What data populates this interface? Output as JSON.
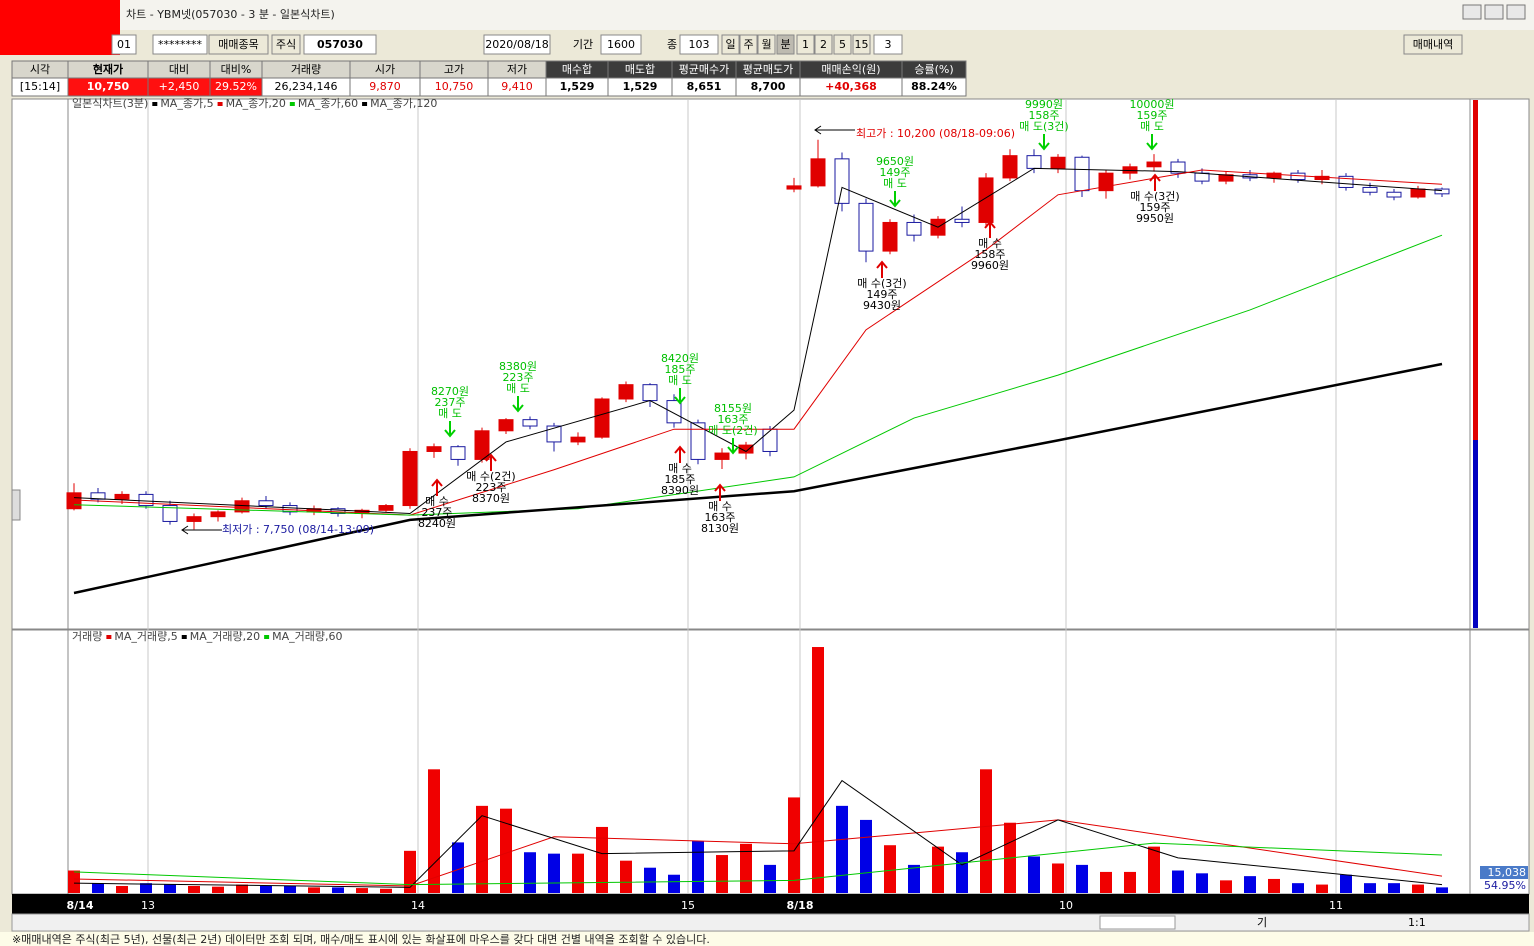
{
  "window": {
    "title": "차트 - YBM넷(057030 - 3 분 - 일본식차트)"
  },
  "toolbar": {
    "account": "01",
    "password": "********",
    "button": "매매종목",
    "market": "주식",
    "code": "057030",
    "date": "2020/08/18",
    "period_label": "기간",
    "period": "1600",
    "count_label": "종",
    "count": "103",
    "periods": [
      "일",
      "주",
      "월",
      "분",
      "1",
      "2",
      "5",
      "15"
    ],
    "minutes": "3",
    "history_button": "매매내역"
  },
  "summary": {
    "headers": [
      "시각",
      "현재가",
      "대비",
      "대비%",
      "거래량",
      "시가",
      "고가",
      "저가",
      "매수합",
      "매도합",
      "평균매수가",
      "평균매도가",
      "매매손익(원)",
      "승률(%)"
    ],
    "values": [
      "[15:14]",
      "10,750",
      "+2,450",
      "29.52%",
      "26,234,146",
      "9,870",
      "10,750",
      "9,410",
      "1,529",
      "1,529",
      "8,651",
      "8,700",
      "+40,368",
      "88.24%"
    ]
  },
  "chart_data": [
    {
      "type": "candlestick",
      "name": "일본식차트(3분)",
      "ylim": [
        7130,
        10450
      ],
      "up_color": "#e00000",
      "down_color": "#1a1aa0",
      "candles": [
        [
          7880,
          8040,
          7870,
          7980
        ],
        [
          7980,
          8010,
          7920,
          7940
        ],
        [
          7940,
          7990,
          7910,
          7970
        ],
        [
          7970,
          7990,
          7880,
          7900
        ],
        [
          7900,
          7930,
          7780,
          7800
        ],
        [
          7800,
          7850,
          7750,
          7830
        ],
        [
          7830,
          7870,
          7800,
          7860
        ],
        [
          7860,
          7950,
          7850,
          7930
        ],
        [
          7930,
          7960,
          7880,
          7900
        ],
        [
          7900,
          7920,
          7840,
          7860
        ],
        [
          7860,
          7900,
          7840,
          7880
        ],
        [
          7880,
          7890,
          7830,
          7850
        ],
        [
          7850,
          7880,
          7820,
          7870
        ],
        [
          7870,
          7910,
          7860,
          7900
        ],
        [
          7900,
          8260,
          7880,
          8240
        ],
        [
          8240,
          8290,
          8200,
          8270
        ],
        [
          8270,
          8280,
          8150,
          8190
        ],
        [
          8190,
          8390,
          8170,
          8370
        ],
        [
          8370,
          8450,
          8350,
          8440
        ],
        [
          8440,
          8460,
          8380,
          8400
        ],
        [
          8400,
          8420,
          8240,
          8300
        ],
        [
          8300,
          8360,
          8280,
          8330
        ],
        [
          8330,
          8580,
          8320,
          8570
        ],
        [
          8570,
          8680,
          8550,
          8660
        ],
        [
          8660,
          8670,
          8520,
          8560
        ],
        [
          8560,
          8600,
          8390,
          8420
        ],
        [
          8420,
          8440,
          8160,
          8190
        ],
        [
          8190,
          8260,
          8130,
          8230
        ],
        [
          8230,
          8300,
          8190,
          8280
        ],
        [
          8380,
          8400,
          8210,
          8240
        ],
        [
          9890,
          9960,
          9870,
          9910
        ],
        [
          9910,
          10200,
          9900,
          10080
        ],
        [
          10080,
          10120,
          9750,
          9800
        ],
        [
          9800,
          9830,
          9430,
          9500
        ],
        [
          9500,
          9700,
          9480,
          9680
        ],
        [
          9680,
          9730,
          9560,
          9600
        ],
        [
          9600,
          9720,
          9580,
          9700
        ],
        [
          9700,
          9780,
          9650,
          9680
        ],
        [
          9680,
          9990,
          9660,
          9960
        ],
        [
          9960,
          10140,
          9940,
          10100
        ],
        [
          10100,
          10140,
          9990,
          10020
        ],
        [
          10020,
          10110,
          9990,
          10090
        ],
        [
          10090,
          10100,
          9840,
          9880
        ],
        [
          9880,
          10010,
          9830,
          9990
        ],
        [
          9990,
          10050,
          9950,
          10030
        ],
        [
          10030,
          10110,
          10000,
          10060
        ],
        [
          10060,
          10080,
          9960,
          9990
        ],
        [
          9990,
          10020,
          9920,
          9940
        ],
        [
          9940,
          10000,
          9920,
          9980
        ],
        [
          9980,
          10010,
          9940,
          9960
        ],
        [
          9960,
          10000,
          9930,
          9990
        ],
        [
          9990,
          10010,
          9930,
          9950
        ],
        [
          9950,
          10010,
          9920,
          9970
        ],
        [
          9970,
          9990,
          9880,
          9900
        ],
        [
          9900,
          9930,
          9850,
          9870
        ],
        [
          9870,
          9890,
          9820,
          9840
        ],
        [
          9840,
          9910,
          9830,
          9890
        ],
        [
          9890,
          9900,
          9840,
          9860
        ]
      ],
      "ma_series": [
        {
          "name": "MA_종가,5",
          "color": "#000000",
          "x": [
            0,
            14,
            18,
            24,
            28,
            30,
            32,
            36,
            40,
            46,
            57
          ],
          "values": [
            7950,
            7850,
            8300,
            8560,
            8240,
            8500,
            9900,
            9650,
            10020,
            10000,
            9880
          ]
        },
        {
          "name": "MA_종가,20",
          "color": "#e00000",
          "x": [
            0,
            14,
            20,
            25,
            30,
            33,
            38,
            41,
            47,
            57
          ],
          "values": [
            7935,
            7840,
            8125,
            8380,
            8380,
            9005,
            9508,
            9854,
            10010,
            9920
          ]
        },
        {
          "name": "MA_종가,60",
          "color": "#00c800",
          "x": [
            0,
            14,
            21,
            30,
            35,
            41,
            49,
            57
          ],
          "values": [
            7905,
            7840,
            7880,
            8080,
            8450,
            8720,
            9130,
            9600
          ]
        },
        {
          "name": "MA_종가,120",
          "color": "#000000",
          "x": [
            0,
            14,
            30,
            41,
            57
          ],
          "values": [
            7350,
            7810,
            7990,
            8310,
            8790
          ]
        }
      ],
      "sell_marks": [
        [
          "8270원",
          "237주",
          "매 도"
        ],
        [
          "8380원",
          "223주",
          "매 도"
        ],
        [
          "8420원",
          "185주",
          "매 도"
        ],
        [
          "8155원",
          "163주",
          "매 도(2건)"
        ],
        [
          "9650원",
          "149주",
          "매 도"
        ],
        [
          "9990원",
          "158주",
          "매 도(3건)"
        ],
        [
          "10000원",
          "159주",
          "매 도"
        ]
      ],
      "buy_marks": [
        [
          "매 수",
          "237주",
          "8240원"
        ],
        [
          "매 수(2건)",
          "223주",
          "8370원"
        ],
        [
          "매 수",
          "185주",
          "8390원"
        ],
        [
          "매 수",
          "163주",
          "8130원"
        ],
        [
          "매 수(3건)",
          "149주",
          "9430원"
        ],
        [
          "매 수",
          "158주",
          "9960원"
        ],
        [
          "매 수(3건)",
          "159주",
          "9950원"
        ]
      ],
      "max_label": "최고가 : 10,200 (08/18-09:06)",
      "min_label": "최저가 : 7,750 (08/14-13:09)"
    },
    {
      "type": "bar",
      "name": "거래량",
      "ylim": [
        0,
        180000
      ],
      "up_color": "#f00000",
      "down_color": "#0000e6",
      "values": [
        16000,
        7000,
        5000,
        7000,
        6000,
        5000,
        4500,
        6000,
        5000,
        5000,
        4000,
        4000,
        3500,
        3000,
        30000,
        88000,
        36000,
        62000,
        60000,
        29000,
        28000,
        28000,
        47000,
        23000,
        18000,
        13000,
        37000,
        27000,
        35000,
        20000,
        68000,
        175000,
        62000,
        52000,
        34000,
        20000,
        33000,
        29000,
        88000,
        50000,
        26000,
        21000,
        20000,
        15000,
        15000,
        33000,
        16000,
        14000,
        9000,
        12000,
        10000,
        7000,
        6000,
        13000,
        7000,
        7000,
        6000,
        4000
      ],
      "ma_series": [
        {
          "name": "MA_거래량,5",
          "color": "#e00000",
          "x": [
            0,
            14,
            20,
            30,
            41,
            57
          ],
          "values": [
            10000,
            5000,
            40000,
            35000,
            52000,
            12000
          ]
        },
        {
          "name": "MA_거래량,20",
          "color": "#000000",
          "x": [
            0,
            14,
            17,
            22,
            30,
            32,
            37,
            41,
            46,
            57
          ],
          "values": [
            7000,
            4000,
            55000,
            28000,
            30000,
            80000,
            20000,
            52000,
            25000,
            6000
          ]
        },
        {
          "name": "MA_거래량,60",
          "color": "#00c800",
          "x": [
            0,
            14,
            30,
            45,
            57
          ],
          "values": [
            15000,
            6000,
            9000,
            35500,
            27000
          ]
        }
      ],
      "last_value_label": "15,038",
      "ratio_label": "54.95%",
      "xlabels": [
        "8/14",
        "13",
        "14",
        "15",
        "8/18",
        "10",
        "11"
      ]
    }
  ],
  "footer": {
    "gi": "기",
    "zoom": "1:1",
    "note": "※매매내역은 주식(최근 5년), 선물(최근 2년) 데이터만 조회 되며, 매수/매도 표시에 있는 화살표에 마우스를 갖다 대면 건별 내역을 조회할 수 있습니다."
  }
}
